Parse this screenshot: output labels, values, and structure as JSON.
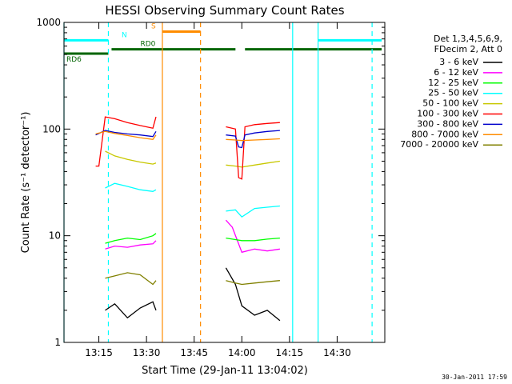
{
  "footer": {
    "timestamp": "30-Jan-2011 17:59"
  },
  "chart_data": {
    "type": "line",
    "title": "HESSI Observing Summary Count Rates",
    "xlabel": "Start Time (29-Jan-11 13:04:02)",
    "ylabel": "Count Rate (s⁻¹ detector⁻¹)",
    "yscale": "log",
    "xlim": [
      "13:04:02",
      "14:45:00"
    ],
    "ylim": [
      1,
      1000
    ],
    "grid": false,
    "xticks": [
      "13:15",
      "13:30",
      "13:45",
      "14:00",
      "14:15",
      "14:30"
    ],
    "yticks": [
      "1",
      "10",
      "100",
      "1000"
    ],
    "legend_position": "top-right",
    "legend_header": [
      "Det 1,3,4,5,6,9,",
      "FDecim 2, Att 0"
    ],
    "series": [
      {
        "name": "3 - 6 keV",
        "color": "#000000",
        "segments": [
          {
            "x": [
              "13:17",
              "13:20",
              "13:24",
              "13:28",
              "13:32",
              "13:33"
            ],
            "y": [
              2,
              2.3,
              1.7,
              2.1,
              2.4,
              2.0
            ]
          },
          {
            "x": [
              "13:55",
              "13:58",
              "14:00",
              "14:04",
              "14:08",
              "14:12"
            ],
            "y": [
              5,
              3.5,
              2.2,
              1.8,
              2.0,
              1.6
            ]
          }
        ]
      },
      {
        "name": "6 - 12 keV",
        "color": "#ff00ff",
        "segments": [
          {
            "x": [
              "13:17",
              "13:20",
              "13:24",
              "13:28",
              "13:32",
              "13:33"
            ],
            "y": [
              7.5,
              8,
              7.8,
              8.2,
              8.4,
              9
            ]
          },
          {
            "x": [
              "13:55",
              "13:57",
              "14:00",
              "14:04",
              "14:08",
              "14:12"
            ],
            "y": [
              14,
              12,
              7,
              7.5,
              7.2,
              7.5
            ]
          }
        ]
      },
      {
        "name": "12 - 25 keV",
        "color": "#00ff00",
        "segments": [
          {
            "x": [
              "13:17",
              "13:20",
              "13:24",
              "13:28",
              "13:32",
              "13:33"
            ],
            "y": [
              8.5,
              9,
              9.5,
              9.2,
              10,
              10.5
            ]
          },
          {
            "x": [
              "13:55",
              "13:58",
              "14:00",
              "14:04",
              "14:08",
              "14:12"
            ],
            "y": [
              9.5,
              9.2,
              9,
              9,
              9.3,
              9.5
            ]
          }
        ]
      },
      {
        "name": "25 - 50 keV",
        "color": "#00ffff",
        "segments": [
          {
            "x": [
              "13:17",
              "13:20",
              "13:24",
              "13:28",
              "13:32",
              "13:33"
            ],
            "y": [
              28,
              31,
              29,
              27,
              26,
              27
            ]
          },
          {
            "x": [
              "13:55",
              "13:58",
              "14:00",
              "14:04",
              "14:08",
              "14:12"
            ],
            "y": [
              17,
              17.5,
              15,
              18,
              18.5,
              19
            ]
          }
        ]
      },
      {
        "name": "50 - 100 keV",
        "color": "#c8c800",
        "segments": [
          {
            "x": [
              "13:17",
              "13:20",
              "13:24",
              "13:28",
              "13:32",
              "13:33"
            ],
            "y": [
              62,
              56,
              52,
              49,
              47,
              48
            ]
          },
          {
            "x": [
              "13:55",
              "13:58",
              "14:00",
              "14:04",
              "14:08",
              "14:12"
            ],
            "y": [
              46,
              45,
              44,
              46,
              48,
              50
            ]
          }
        ]
      },
      {
        "name": "100 - 300 keV",
        "color": "#ff0000",
        "segments": [
          {
            "x": [
              "13:14",
              "13:15",
              "13:17",
              "13:20",
              "13:24",
              "13:28",
              "13:32",
              "13:33"
            ],
            "y": [
              45,
              45,
              130,
              125,
              115,
              108,
              102,
              130
            ]
          },
          {
            "x": [
              "13:55",
              "13:58",
              "13:59",
              "14:00",
              "14:01",
              "14:04",
              "14:08",
              "14:12"
            ],
            "y": [
              105,
              100,
              35,
              34,
              105,
              110,
              113,
              115
            ]
          }
        ]
      },
      {
        "name": "300 - 800 keV",
        "color": "#0000cc",
        "segments": [
          {
            "x": [
              "13:14",
              "13:17",
              "13:20",
              "13:24",
              "13:28",
              "13:32",
              "13:33"
            ],
            "y": [
              88,
              97,
              93,
              90,
              88,
              85,
              95
            ]
          },
          {
            "x": [
              "13:55",
              "13:58",
              "13:59",
              "14:00",
              "14:01",
              "14:04",
              "14:08",
              "14:12"
            ],
            "y": [
              88,
              86,
              68,
              67,
              88,
              92,
              95,
              97
            ]
          }
        ]
      },
      {
        "name": "800 - 7000 keV",
        "color": "#ff8c00",
        "segments": [
          {
            "x": [
              "13:14",
              "13:17",
              "13:20",
              "13:24",
              "13:28",
              "13:32",
              "13:33"
            ],
            "y": [
              90,
              95,
              91,
              87,
              83,
              80,
              88
            ]
          },
          {
            "x": [
              "13:55",
              "13:58",
              "14:00",
              "14:04",
              "14:08",
              "14:12"
            ],
            "y": [
              80,
              79,
              78,
              79,
              80,
              81
            ]
          }
        ]
      },
      {
        "name": "7000 - 20000 keV",
        "color": "#808000",
        "segments": [
          {
            "x": [
              "13:17",
              "13:20",
              "13:24",
              "13:28",
              "13:32",
              "13:33"
            ],
            "y": [
              4,
              4.2,
              4.5,
              4.3,
              3.5,
              3.8
            ]
          },
          {
            "x": [
              "13:55",
              "13:58",
              "14:00",
              "14:04",
              "14:08",
              "14:12"
            ],
            "y": [
              3.8,
              3.6,
              3.5,
              3.6,
              3.7,
              3.8
            ]
          }
        ]
      }
    ],
    "vlines": [
      {
        "x": "13:04:02",
        "color": "#00ffff",
        "style": "solid"
      },
      {
        "x": "13:18",
        "color": "#00ffff",
        "style": "dashed"
      },
      {
        "x": "13:35",
        "color": "#ff8c00",
        "style": "solid"
      },
      {
        "x": "13:47",
        "color": "#ff8c00",
        "style": "dashed"
      },
      {
        "x": "14:16",
        "color": "#00ffff",
        "style": "solid"
      },
      {
        "x": "14:24",
        "color": "#00ffff",
        "style": "solid"
      },
      {
        "x": "14:41",
        "color": "#00ffff",
        "style": "dashed"
      }
    ],
    "bars": [
      {
        "label": "N",
        "color": "#00ffff",
        "level": 680,
        "spans": [
          [
            "13:04:02",
            "13:18"
          ],
          [
            "14:24",
            "14:44"
          ]
        ]
      },
      {
        "label": "S",
        "color": "#ff8c00",
        "level": 820,
        "spans": [
          [
            "13:35",
            "13:47"
          ]
        ]
      },
      {
        "label": "RD0",
        "color": "#006400",
        "level": 560,
        "spans": [
          [
            "13:19",
            "13:58"
          ],
          [
            "14:01",
            "14:44"
          ]
        ]
      },
      {
        "label": "RD6",
        "color": "#006400",
        "level": 510,
        "spans": [
          [
            "13:04:02",
            "13:18"
          ]
        ]
      }
    ]
  }
}
